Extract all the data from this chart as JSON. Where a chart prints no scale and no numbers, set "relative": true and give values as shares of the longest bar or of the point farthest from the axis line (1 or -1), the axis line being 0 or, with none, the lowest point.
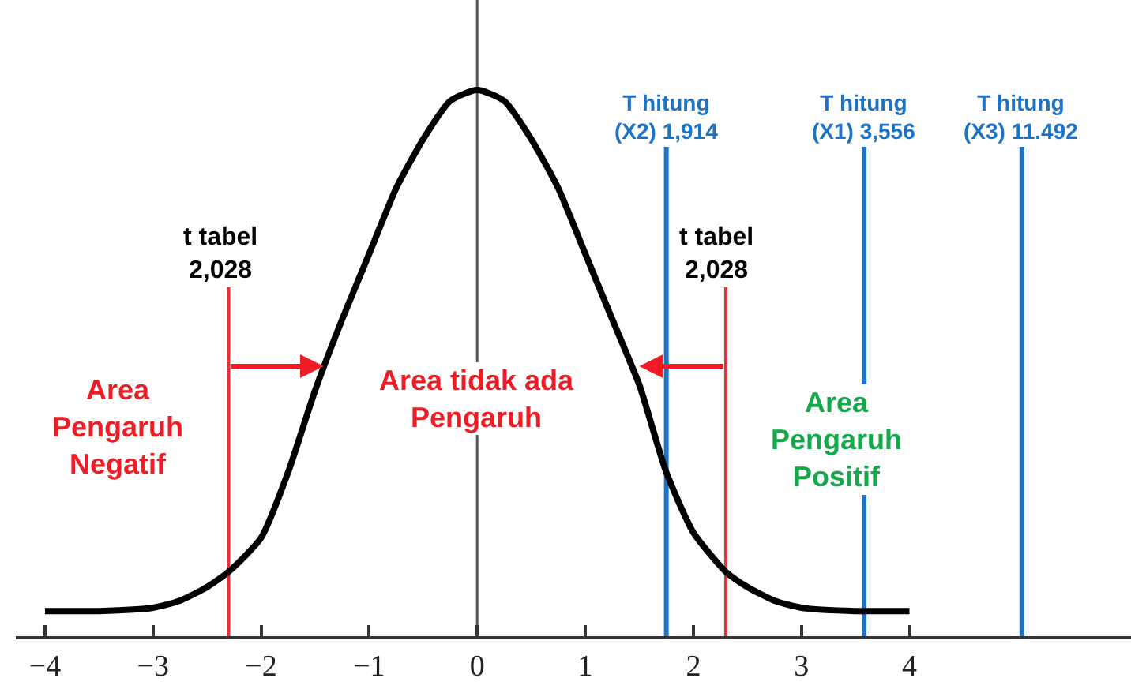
{
  "chart_data": {
    "type": "line",
    "relative": true,
    "tick_labels": "x",
    "marker": "none",
    "line_style": "solid",
    "x": [
      -4,
      -3.5,
      -3,
      -2.75,
      -2.5,
      -2.3,
      -2,
      -1.75,
      -1.5,
      -1.25,
      -1,
      -0.75,
      -0.5,
      -0.25,
      0,
      0.25,
      0.5,
      0.75,
      1,
      1.25,
      1.5,
      1.75,
      2,
      2.3,
      2.5,
      2.75,
      3,
      3.5,
      4
    ],
    "series": [
      {
        "color": "#000000",
        "values": [
          0.046,
          0.046,
          0.052,
          0.065,
          0.09,
          0.118,
          0.18,
          0.3,
          0.45,
          0.58,
          0.7,
          0.82,
          0.91,
          0.98,
          1,
          0.98,
          0.91,
          0.82,
          0.7,
          0.58,
          0.46,
          0.3,
          0.19,
          0.118,
          0.09,
          0.065,
          0.052,
          0.046,
          0.046
        ]
      }
    ],
    "xlim": [
      -4.27,
      6.05
    ],
    "xticks": [
      -4,
      -3,
      -2,
      -1,
      0,
      1,
      2,
      3,
      4
    ],
    "ref_lines": [
      {
        "axis": "x",
        "value": 0,
        "color": "#555555"
      },
      {
        "axis": "x",
        "value": -2.3,
        "color": "#e8303a",
        "label": "t tabel\n2,028"
      },
      {
        "axis": "x",
        "value": 2.3,
        "color": "#e8303a",
        "label": "t tabel\n2,028"
      },
      {
        "axis": "x",
        "value": 1.75,
        "color": "#1a73c5",
        "label": "T hitung\n(X2) 1,914"
      },
      {
        "axis": "x",
        "value": 3.58,
        "color": "#1a73c5",
        "label": "T hitung\n(X1) 3,556"
      },
      {
        "axis": "x",
        "value": 5.04,
        "color": "#1a73c5",
        "label": "T hitung\n(X3) 11.492"
      }
    ],
    "annotations": [
      "Area\nPengaruh\nNegatif",
      "Area tidak ada\nPengaruh",
      "Area\nPengaruh\nPositif"
    ]
  }
}
